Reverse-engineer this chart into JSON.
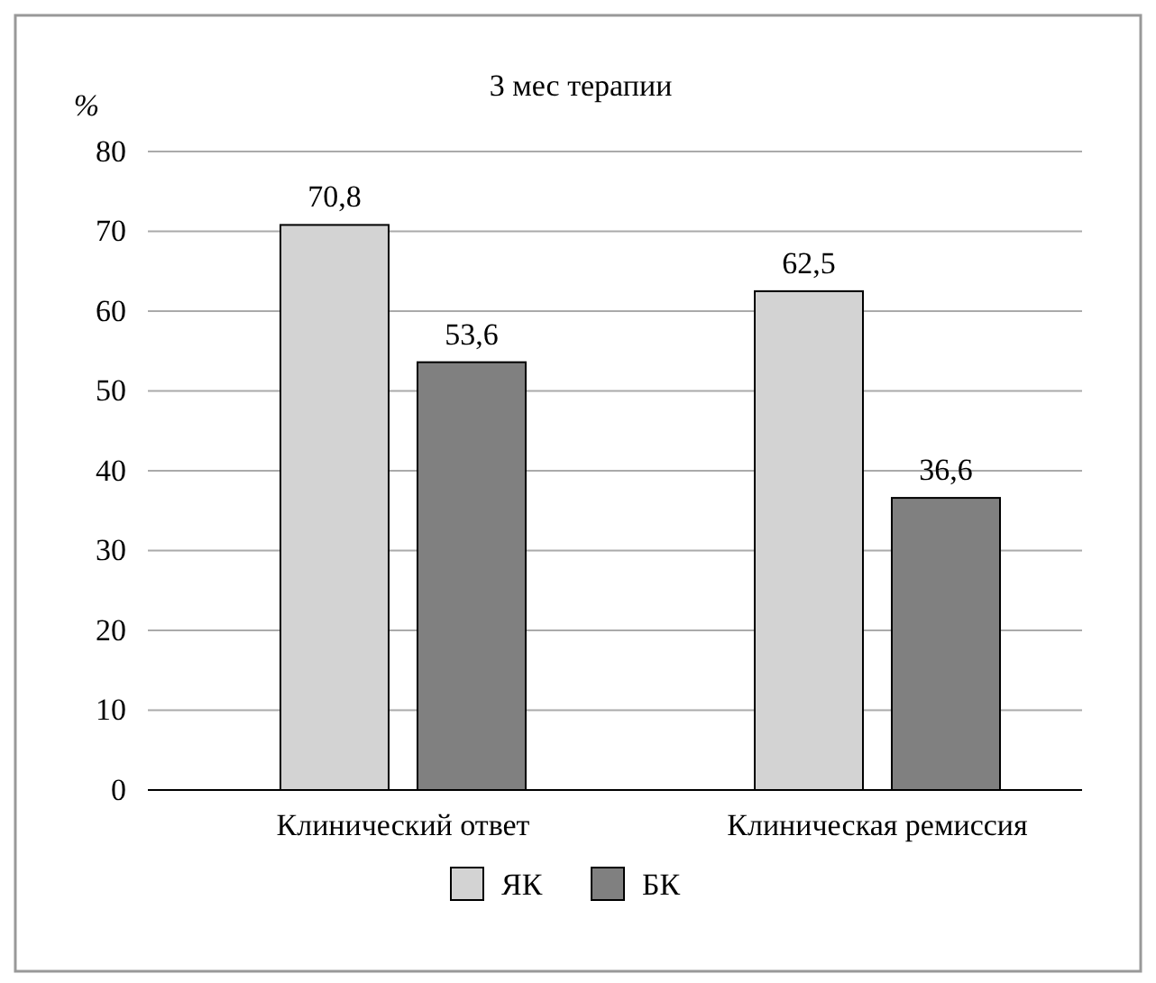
{
  "chart_data": {
    "type": "bar",
    "title": "3 мес терапии",
    "ylabel": "%",
    "categories": [
      "Клинический ответ",
      "Клиническая ремиссия"
    ],
    "series": [
      {
        "name": "ЯК",
        "color": "#d3d3d3",
        "values": [
          70.8,
          62.5
        ],
        "value_labels": [
          "70,8",
          "62,5"
        ]
      },
      {
        "name": "БК",
        "color": "#808080",
        "values": [
          53.6,
          36.6
        ],
        "value_labels": [
          "53,6",
          "36,6"
        ]
      }
    ],
    "ylim": [
      0,
      80
    ],
    "yticks": [
      0,
      10,
      20,
      30,
      40,
      50,
      60,
      70,
      80
    ],
    "grid": "y",
    "legend": "bottom"
  }
}
